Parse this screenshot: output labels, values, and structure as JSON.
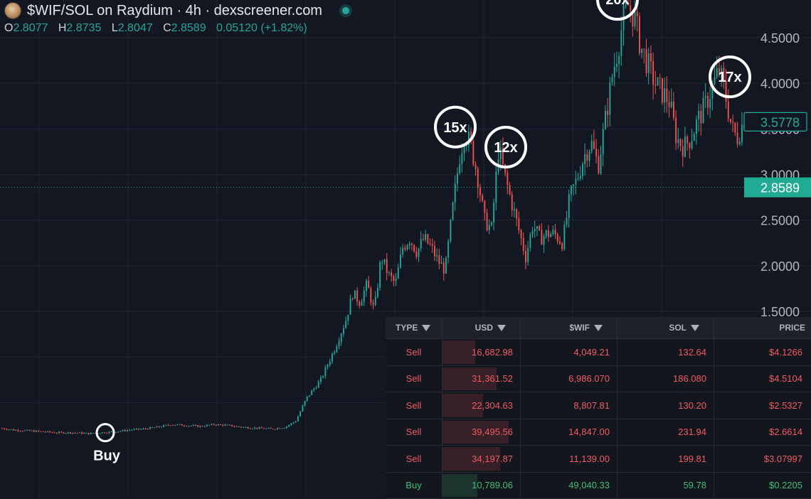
{
  "header": {
    "title": "$WIF/SOL on Raydium · 4h · dexscreener.com",
    "ohlc": {
      "o_label": "O",
      "o": "2.8077",
      "h_label": "H",
      "h": "2.8735",
      "l_label": "L",
      "l": "2.8047",
      "c_label": "C",
      "c": "2.8589",
      "change": "0.05120 (+1.82%)"
    }
  },
  "price_axis": {
    "current_price": "3.5778",
    "last_price": "2.8589"
  },
  "colors": {
    "up": "#26a69a",
    "down": "#ef5350",
    "background": "#131722",
    "grid": "#1f2430",
    "badge": "#22ab94"
  },
  "chart_data": {
    "type": "candlestick",
    "yticks": [
      "1.5000",
      "2.0000",
      "2.5000",
      "3.0000",
      "3.5000",
      "4.0000",
      "4.5000"
    ],
    "ylim": [
      0.0,
      4.8
    ],
    "grid": true,
    "price_path": [
      [
        0,
        0.22
      ],
      [
        18,
        0.2
      ],
      [
        40,
        0.19
      ],
      [
        60,
        0.18
      ],
      [
        80,
        0.17
      ],
      [
        100,
        0.17
      ],
      [
        125,
        0.16
      ],
      [
        140,
        0.17
      ],
      [
        160,
        0.18
      ],
      [
        180,
        0.2
      ],
      [
        200,
        0.21
      ],
      [
        220,
        0.23
      ],
      [
        240,
        0.26
      ],
      [
        260,
        0.25
      ],
      [
        280,
        0.24
      ],
      [
        300,
        0.26
      ],
      [
        320,
        0.25
      ],
      [
        340,
        0.23
      ],
      [
        360,
        0.22
      ],
      [
        380,
        0.21
      ],
      [
        400,
        0.23
      ],
      [
        415,
        0.3
      ],
      [
        430,
        0.55
      ],
      [
        450,
        0.75
      ],
      [
        470,
        1.1
      ],
      [
        485,
        1.4
      ],
      [
        495,
        1.7
      ],
      [
        505,
        1.6
      ],
      [
        515,
        1.8
      ],
      [
        525,
        1.5
      ],
      [
        535,
        2.1
      ],
      [
        545,
        1.9
      ],
      [
        555,
        1.8
      ],
      [
        565,
        2.2
      ],
      [
        575,
        2.3
      ],
      [
        585,
        2.15
      ],
      [
        595,
        2.3
      ],
      [
        605,
        2.2
      ],
      [
        615,
        2.05
      ],
      [
        625,
        1.95
      ],
      [
        635,
        2.6
      ],
      [
        645,
        3.2
      ],
      [
        652,
        3.45
      ],
      [
        660,
        3.35
      ],
      [
        670,
        3.0
      ],
      [
        680,
        2.5
      ],
      [
        690,
        2.4
      ],
      [
        700,
        3.3
      ],
      [
        708,
        3.0
      ],
      [
        718,
        2.7
      ],
      [
        728,
        2.4
      ],
      [
        738,
        2.1
      ],
      [
        748,
        2.45
      ],
      [
        758,
        2.3
      ],
      [
        768,
        2.35
      ],
      [
        778,
        2.35
      ],
      [
        790,
        2.25
      ],
      [
        800,
        2.75
      ],
      [
        810,
        2.95
      ],
      [
        820,
        3.2
      ],
      [
        830,
        3.35
      ],
      [
        840,
        3.1
      ],
      [
        850,
        3.6
      ],
      [
        860,
        4.1
      ],
      [
        868,
        4.4
      ],
      [
        875,
        4.7
      ],
      [
        882,
        4.85
      ],
      [
        890,
        4.75
      ],
      [
        900,
        4.4
      ],
      [
        910,
        4.2
      ],
      [
        920,
        4.0
      ],
      [
        930,
        3.9
      ],
      [
        940,
        3.8
      ],
      [
        950,
        3.4
      ],
      [
        960,
        3.3
      ],
      [
        970,
        3.4
      ],
      [
        980,
        3.6
      ],
      [
        990,
        3.75
      ],
      [
        1000,
        3.95
      ],
      [
        1010,
        4.15
      ],
      [
        1018,
        3.9
      ],
      [
        1028,
        3.5
      ],
      [
        1035,
        3.4
      ],
      [
        1045,
        3.6
      ]
    ],
    "annotations": [
      {
        "label": "Buy",
        "x": 148,
        "price": 0.17
      },
      {
        "label": "15x",
        "x": 640,
        "price": 3.52
      },
      {
        "label": "12x",
        "x": 711,
        "price": 3.3
      },
      {
        "label": "20x",
        "x": 868,
        "price": 4.92
      },
      {
        "label": "17x",
        "x": 1026,
        "price": 4.07
      }
    ],
    "current_price": 3.5778,
    "last_price": 2.8589
  },
  "trades": {
    "columns": {
      "type": "TYPE",
      "usd": "USD",
      "wif": "$WIF",
      "sol": "SOL",
      "price": "PRICE"
    },
    "rows": [
      {
        "type": "Sell",
        "usd": "16,682.98",
        "wif": "4,049.21",
        "sol": "132.64",
        "price": "$4.1266",
        "usd_fill": 0.42
      },
      {
        "type": "Sell",
        "usd": "31,361.52",
        "wif": "6,986.070",
        "sol": "186.080",
        "price": "$4.5104",
        "usd_fill": 0.7
      },
      {
        "type": "Sell",
        "usd": "22,304.63",
        "wif": "8,807.81",
        "sol": "130.20",
        "price": "$2.5327",
        "usd_fill": 0.52
      },
      {
        "type": "Sell",
        "usd": "39,495.56",
        "wif": "14,847.00",
        "sol": "231.94",
        "price": "$2.6614",
        "usd_fill": 0.85
      },
      {
        "type": "Sell",
        "usd": "34,197.87",
        "wif": "11,139.00",
        "sol": "199.81",
        "price": "$3.07997",
        "usd_fill": 0.74
      },
      {
        "type": "Buy",
        "usd": "10,789.06",
        "wif": "49,040.33",
        "sol": "59.78",
        "price": "$0.2205",
        "usd_fill": 0.45
      }
    ]
  }
}
